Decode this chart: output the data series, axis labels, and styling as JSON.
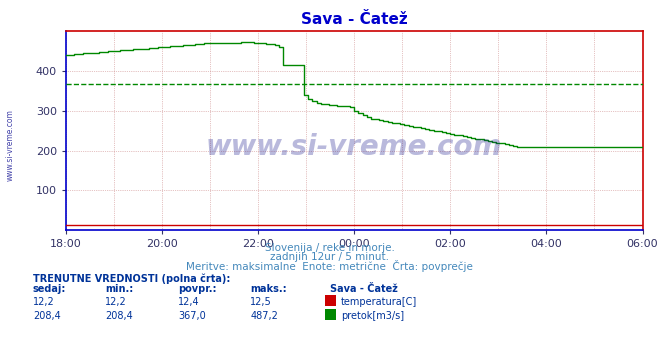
{
  "title": "Sava - Čatež",
  "title_color": "#0000cc",
  "bg_color": "#ffffff",
  "plot_bg_color": "#ffffff",
  "grid_color_v": "#cc8888",
  "grid_color_h": "#cc8888",
  "watermark_text": "www.si-vreme.com",
  "watermark_color": "#1a1a8c",
  "watermark_alpha": 0.3,
  "sidebar_text": "www.si-vreme.com",
  "sidebar_color": "#4444aa",
  "xlabel_text1": "Slovenija / reke in morje.",
  "xlabel_text2": "zadnjih 12ur / 5 minut.",
  "xlabel_text3": "Meritve: maksimalne  Enote: metrične  Črta: povprečje",
  "xlabel_color": "#4488bb",
  "ylim": [
    0,
    500
  ],
  "yticks": [
    100,
    200,
    300,
    400
  ],
  "xtick_positions": [
    0,
    24,
    48,
    72,
    96,
    120,
    144
  ],
  "xtick_labels": [
    "18:00",
    "20:00",
    "22:00",
    "00:00",
    "02:00",
    "04:00",
    "06:00"
  ],
  "avg_pretok": 367.0,
  "pretok_color": "#008800",
  "temp_color": "#cc0000",
  "temp_value": 12.2,
  "legend_info": {
    "station": "Sava - Čatež",
    "temp_color": "#cc0000",
    "pretok_color": "#008800",
    "temp_label": "temperatura[C]",
    "pretok_label": "pretok[m3/s]",
    "current_temp": "12,2",
    "min_temp": "12,2",
    "avg_temp_str": "12,4",
    "max_temp": "12,5",
    "current_pretok": "208,4",
    "min_pretok": "208,4",
    "avg_pretok_str": "367,0",
    "max_pretok": "487,2"
  },
  "pretok_data": [
    440,
    441,
    442,
    443,
    444,
    445,
    445,
    446,
    447,
    448,
    449,
    450,
    451,
    452,
    453,
    453,
    454,
    455,
    456,
    456,
    457,
    458,
    459,
    460,
    461,
    462,
    463,
    463,
    464,
    465,
    466,
    467,
    468,
    469,
    469,
    469,
    469,
    469,
    470,
    471,
    471,
    471,
    472,
    472,
    472,
    471,
    470,
    469,
    468,
    467,
    465,
    460,
    415,
    415,
    415,
    415,
    415,
    340,
    330,
    325,
    320,
    318,
    316,
    315,
    314,
    313,
    312,
    311,
    310,
    300,
    295,
    290,
    285,
    280,
    278,
    276,
    274,
    272,
    270,
    268,
    266,
    264,
    262,
    260,
    258,
    256,
    254,
    252,
    250,
    248,
    246,
    244,
    242,
    240,
    238,
    236,
    234,
    232,
    230,
    228,
    226,
    224,
    222,
    220,
    218,
    216,
    214,
    212,
    210,
    208,
    208,
    208,
    208,
    208,
    208,
    208,
    208,
    208,
    208,
    208,
    208,
    208,
    208,
    208,
    208,
    208,
    208,
    208,
    208,
    208,
    208,
    208,
    208,
    208,
    208,
    208,
    208,
    208,
    208
  ]
}
